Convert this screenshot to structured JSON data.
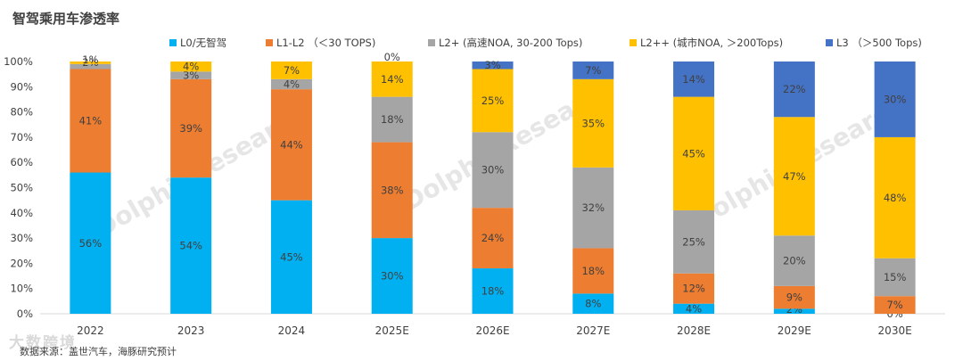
{
  "chart_data": {
    "type": "bar",
    "stacked": true,
    "title": "智驾乘用车渗透率",
    "source": "数据来源：盖世汽车，海豚研究预计",
    "watermark": "DolphinResearch",
    "corner_watermark": "大数跨境",
    "categories": [
      "2022",
      "2023",
      "2024",
      "2025E",
      "2026E",
      "2027E",
      "2028E",
      "2029E",
      "2030E"
    ],
    "ylim": [
      0,
      100
    ],
    "yticks": [
      "0%",
      "10%",
      "20%",
      "30%",
      "40%",
      "50%",
      "60%",
      "70%",
      "80%",
      "90%",
      "100%"
    ],
    "legend_position": "top",
    "series": [
      {
        "name": "L0/无智驾",
        "color": "#00b0f0",
        "values": [
          56,
          54,
          45,
          30,
          18,
          8,
          4,
          2,
          0
        ],
        "labels": [
          "56%",
          "54%",
          "45%",
          "30%",
          "18%",
          "8%",
          "4%",
          "2%",
          "0%"
        ]
      },
      {
        "name": "L1-L2 （＜30 TOPS)",
        "color": "#ed7d31",
        "values": [
          41,
          39,
          44,
          38,
          24,
          18,
          12,
          9,
          7
        ],
        "labels": [
          "41%",
          "39%",
          "44%",
          "38%",
          "24%",
          "18%",
          "12%",
          "9%",
          "7%"
        ]
      },
      {
        "name": "L2+ (高速NOA, 30-200 Tops)",
        "color": "#a5a5a5",
        "values": [
          2,
          3,
          4,
          18,
          30,
          32,
          25,
          20,
          15
        ],
        "labels": [
          "2%",
          "3%",
          "4%",
          "18%",
          "30%",
          "32%",
          "25%",
          "20%",
          "15%"
        ]
      },
      {
        "name": "L2++ (城市NOA, ＞200Tops)",
        "color": "#ffc000",
        "values": [
          1,
          4,
          7,
          14,
          25,
          35,
          45,
          47,
          48
        ],
        "labels": [
          "1%",
          "4%",
          "7%",
          "14%",
          "25%",
          "35%",
          "45%",
          "47%",
          "48%"
        ]
      },
      {
        "name": "L3 （＞500 Tops)",
        "color": "#4472c4",
        "values": [
          0,
          0,
          0,
          0,
          3,
          7,
          14,
          22,
          30
        ],
        "labels": [
          "",
          "",
          "",
          "0%",
          "3%",
          "7%",
          "14%",
          "22%",
          "30%"
        ]
      }
    ]
  }
}
